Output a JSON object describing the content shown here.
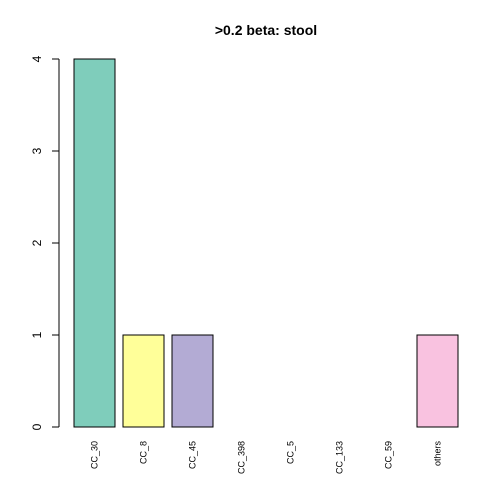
{
  "chart_data": {
    "type": "bar",
    "title": ">0.2 beta:  stool",
    "xlabel": "",
    "ylabel": "",
    "categories": [
      "CC_30",
      "CC_8",
      "CC_45",
      "CC_398",
      "CC_5",
      "CC_133",
      "CC_59",
      "others"
    ],
    "values": [
      4,
      1,
      1,
      0,
      0,
      0,
      0,
      1
    ],
    "colors": [
      "#7FCDBB",
      "#FFFF99",
      "#B3ABD4",
      "#FB8072",
      "#80B1D3",
      "#FDB462",
      "#B3DE69",
      "#F9C2E0"
    ],
    "ylim": [
      0,
      4
    ],
    "yticks": [
      "0",
      "1",
      "2",
      "3",
      "4"
    ],
    "grid": false,
    "legend": "none"
  }
}
